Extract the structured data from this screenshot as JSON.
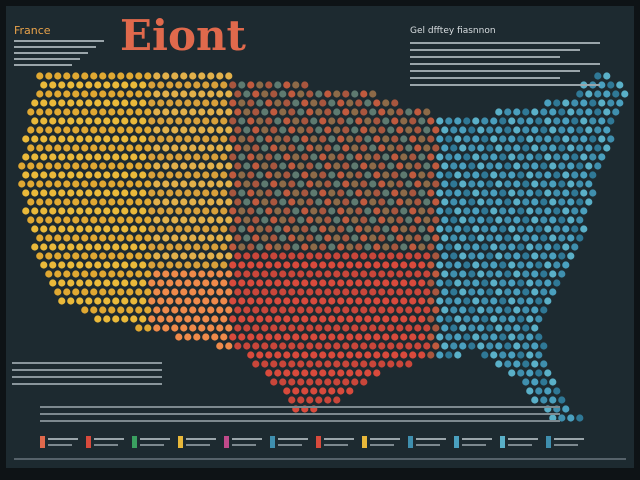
{
  "header": {
    "title": "Eiont",
    "corner_label": "France",
    "side_heading": "Gel dfftey fiasnnon"
  }
}
